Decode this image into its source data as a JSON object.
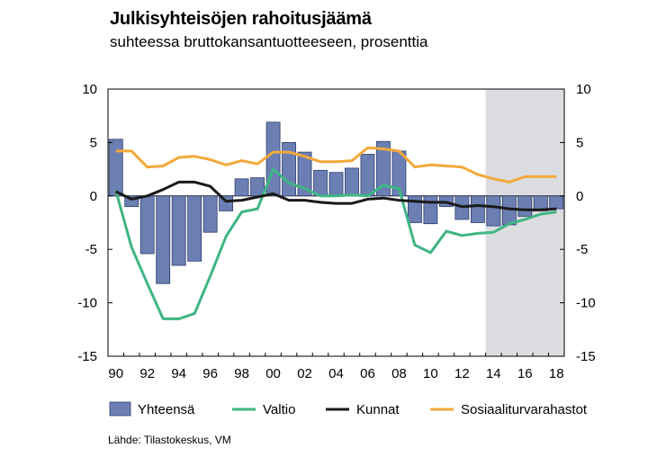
{
  "title": "Julkisyhteisöjen rahoitusjäämä",
  "subtitle": "suhteessa bruttokansantuotteeseen, prosenttia",
  "source": "Lähde: Tilastokeskus, VM",
  "colors": {
    "bar_fill": "#6b7fb3",
    "bar_stroke": "#2e3f6e",
    "valtio": "#3fb583",
    "kunnat": "#1a1a1a",
    "sosiaali": "#f2a93b",
    "forecast_shade": "#dcdde0"
  },
  "chart_data": {
    "type": "bar",
    "title": "Julkisyhteisöjen rahoitusjäämä",
    "subtitle": "suhteessa bruttokansantuotteeseen, prosenttia",
    "years": [
      1990,
      1991,
      1992,
      1993,
      1994,
      1995,
      1996,
      1997,
      1998,
      1999,
      2000,
      2001,
      2002,
      2003,
      2004,
      2005,
      2006,
      2007,
      2008,
      2009,
      2010,
      2011,
      2012,
      2013,
      2014,
      2015,
      2016,
      2017,
      2018
    ],
    "x_tick_labels": [
      "90",
      "92",
      "94",
      "96",
      "98",
      "00",
      "02",
      "04",
      "06",
      "08",
      "10",
      "12",
      "14",
      "16",
      "18"
    ],
    "y_tick_labels_left": [
      "10",
      "5",
      "0",
      "-5",
      "-10",
      "-15"
    ],
    "y_tick_labels_right": [
      "10",
      "5",
      "0",
      "-5",
      "-10",
      "-15"
    ],
    "ylim": [
      -15,
      10
    ],
    "forecast_from": 2014,
    "legend_placement": "bottom",
    "series": [
      {
        "name": "Yhteensä",
        "kind": "bar",
        "values": [
          5.3,
          -1.0,
          -5.4,
          -8.2,
          -6.5,
          -6.1,
          -3.4,
          -1.4,
          1.6,
          1.7,
          6.9,
          5.0,
          4.1,
          2.4,
          2.2,
          2.6,
          3.9,
          5.1,
          4.2,
          -2.5,
          -2.6,
          -1.0,
          -2.2,
          -2.5,
          -2.8,
          -2.7,
          -1.9,
          -1.4,
          -1.2
        ]
      },
      {
        "name": "Valtio",
        "kind": "line",
        "values": [
          0.5,
          -4.8,
          -8.2,
          -11.5,
          -11.5,
          -11.0,
          -7.5,
          -3.8,
          -1.5,
          -1.2,
          2.5,
          1.2,
          0.7,
          0.0,
          0.0,
          0.1,
          0.0,
          1.0,
          0.7,
          -4.6,
          -5.3,
          -3.3,
          -3.7,
          -3.5,
          -3.4,
          -2.6,
          -2.2,
          -1.7,
          -1.5
        ]
      },
      {
        "name": "Kunnat",
        "kind": "line",
        "values": [
          0.4,
          -0.3,
          0.0,
          0.6,
          1.3,
          1.3,
          0.9,
          -0.5,
          -0.4,
          -0.1,
          0.2,
          -0.4,
          -0.4,
          -0.6,
          -0.7,
          -0.7,
          -0.3,
          -0.2,
          -0.4,
          -0.5,
          -0.6,
          -0.6,
          -1.0,
          -0.9,
          -1.0,
          -1.2,
          -1.3,
          -1.3,
          -1.2
        ]
      },
      {
        "name": "Sosiaaliturvarahastot",
        "kind": "line",
        "values": [
          4.2,
          4.2,
          2.7,
          2.8,
          3.6,
          3.7,
          3.4,
          2.9,
          3.3,
          3.0,
          4.1,
          4.1,
          3.7,
          3.2,
          3.2,
          3.3,
          4.5,
          4.4,
          4.2,
          2.7,
          2.9,
          2.8,
          2.7,
          2.0,
          1.6,
          1.3,
          1.8,
          1.8,
          1.8
        ]
      }
    ]
  }
}
